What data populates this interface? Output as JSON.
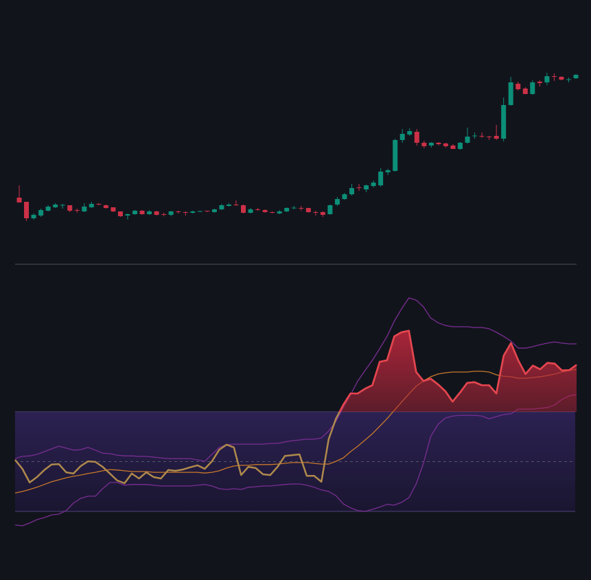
{
  "chart_data": [
    {
      "type": "candlestick",
      "up_color": "#0c8f78",
      "down_color": "#cc3147",
      "ylim": [
        20,
        345
      ],
      "open": [
        112,
        106,
        82,
        86,
        93,
        98,
        101,
        101,
        94,
        92,
        98,
        103,
        101,
        98,
        92,
        86,
        88,
        93,
        88,
        92,
        88,
        87,
        92,
        91,
        90,
        92,
        93,
        91,
        95,
        100,
        102,
        101,
        90,
        95,
        94,
        91,
        89,
        92,
        97,
        97,
        97,
        91,
        91,
        88,
        102,
        110,
        117,
        127,
        124,
        129,
        130,
        149,
        151,
        196,
        204,
        208,
        192,
        188,
        192,
        191,
        188,
        183,
        192,
        202,
        202,
        201,
        202,
        198,
        247,
        278,
        271,
        263,
        281,
        280,
        289,
        288,
        284,
        286
      ],
      "close": [
        105,
        82,
        87,
        94,
        99,
        102,
        101.5,
        93,
        93,
        99,
        103,
        102.5,
        97,
        92,
        85,
        88,
        93,
        88,
        92,
        87,
        87,
        92,
        91,
        90,
        92,
        92.5,
        92,
        95,
        101,
        102,
        101,
        90,
        95,
        94.5,
        91,
        90.5,
        92,
        97,
        97.5,
        96.5,
        91,
        90,
        87,
        101,
        110,
        117,
        126,
        126,
        130,
        134,
        150,
        152,
        196,
        205,
        209,
        192,
        187,
        192,
        190,
        187,
        183,
        192,
        201,
        202.5,
        201.5,
        200,
        198,
        247,
        280,
        270,
        263,
        280,
        279,
        289,
        288,
        284,
        284.5,
        291
      ],
      "high": [
        130,
        106,
        89,
        96,
        101,
        104,
        103,
        101,
        96,
        104,
        106,
        104,
        102,
        98,
        92,
        89,
        94,
        94,
        94,
        93,
        90,
        93,
        93,
        92,
        93,
        93,
        93,
        96,
        103,
        104,
        108,
        102,
        97,
        97,
        95,
        92,
        94,
        98,
        100,
        100,
        97,
        93,
        92,
        102,
        113,
        119,
        132,
        132,
        131,
        137,
        155,
        154,
        198,
        212,
        213,
        212,
        195,
        193,
        193,
        192,
        190,
        193,
        214,
        207,
        207,
        202,
        218,
        258,
        288,
        281,
        273,
        283,
        283,
        294,
        293,
        289,
        287,
        292
      ],
      "low": [
        105,
        78,
        80,
        84,
        92,
        97,
        96,
        91,
        90,
        91,
        97,
        101,
        96,
        91,
        84,
        80,
        87,
        87,
        87,
        86,
        85,
        85,
        89,
        86,
        89,
        91,
        91,
        90,
        94,
        99,
        100,
        89,
        89,
        93,
        90,
        89,
        88,
        91,
        95,
        93,
        90,
        86,
        84,
        87,
        100,
        109,
        115,
        122,
        120,
        127,
        128,
        145,
        150,
        192,
        202,
        188,
        184,
        185,
        188,
        185,
        183,
        182,
        191,
        198,
        199,
        196,
        196,
        194,
        246,
        268,
        263,
        262,
        274,
        276,
        282,
        283,
        280,
        285
      ]
    },
    {
      "type": "indicator",
      "ylim": [
        10,
        125
      ],
      "zone": [
        30,
        70
      ],
      "midline": 50,
      "zone_color": "#2c2152",
      "overbought_color": "#e8434f",
      "series": [
        {
          "color": "#7a2e93",
          "values": [
            51.2,
            52.1,
            52.3,
            52.9,
            54.0,
            55.1,
            56.2,
            55.4,
            54.6,
            54.8,
            55.7,
            54.6,
            53.4,
            53.2,
            52.6,
            52.3,
            52.3,
            52.1,
            52.1,
            51.8,
            51.5,
            51.2,
            51.2,
            51.2,
            51.2,
            50.7,
            50.1,
            52.9,
            55.7,
            56.8,
            57.0,
            57.0,
            57.0,
            57.0,
            57.0,
            57.3,
            57.3,
            57.9,
            58.4,
            58.7,
            59.0,
            59.0,
            59.5,
            62.3,
            66.1,
            71.7,
            76.9,
            82.4,
            86.6,
            90.7,
            95.4,
            100.3,
            106.4,
            111.4,
            115.8,
            114.9,
            112.2,
            107.7,
            105.8,
            104.7,
            104.2,
            104.2,
            104.2,
            103.9,
            103.9,
            103.4,
            102.0,
            100.3,
            98.4,
            95.6,
            95.6,
            96.2,
            97.0,
            97.6,
            98.1,
            97.6,
            97.3,
            97.3
          ]
        },
        {
          "color": "#7a2e93",
          "values": [
            24.5,
            24.2,
            25.3,
            26.7,
            27.5,
            28.6,
            28.9,
            30.3,
            33.3,
            35.2,
            36.1,
            36.1,
            39.1,
            41.6,
            41.6,
            40.5,
            40.8,
            40.8,
            40.8,
            40.5,
            40.2,
            40.2,
            40.2,
            40.2,
            40.2,
            40.5,
            40.8,
            40.2,
            39.1,
            38.8,
            39.1,
            38.8,
            39.7,
            39.9,
            40.2,
            40.2,
            40.5,
            40.8,
            41.0,
            41.0,
            40.5,
            39.7,
            38.6,
            38.0,
            36.3,
            33.0,
            31.4,
            30.3,
            30.0,
            30.8,
            31.7,
            32.8,
            32.5,
            33.6,
            35.5,
            41.0,
            49.3,
            60.1,
            65.0,
            67.5,
            68.3,
            68.6,
            68.6,
            68.6,
            68.3,
            67.2,
            68.1,
            68.9,
            69.2,
            71.1,
            71.1,
            71.1,
            71.4,
            71.7,
            72.8,
            75.0,
            76.4,
            76.9
          ]
        },
        {
          "color": "#c97a2a",
          "values": [
            37.4,
            38.0,
            38.8,
            39.7,
            40.8,
            41.9,
            42.7,
            43.5,
            44.1,
            44.6,
            45.2,
            45.7,
            46.3,
            46.8,
            46.6,
            46.3,
            46.0,
            46.0,
            46.0,
            45.7,
            45.7,
            45.7,
            45.7,
            45.7,
            45.7,
            45.7,
            45.4,
            45.7,
            46.3,
            47.4,
            48.2,
            48.5,
            48.5,
            48.8,
            48.8,
            48.8,
            49.0,
            49.3,
            49.6,
            49.6,
            49.6,
            49.3,
            49.0,
            49.0,
            50.1,
            51.5,
            54.0,
            56.2,
            58.7,
            61.2,
            64.2,
            67.2,
            70.6,
            73.9,
            77.2,
            80.3,
            82.4,
            84.1,
            85.2,
            85.7,
            86.0,
            86.0,
            86.0,
            86.3,
            86.3,
            86.0,
            84.9,
            84.3,
            84.1,
            83.5,
            83.5,
            83.8,
            84.1,
            84.6,
            85.2,
            86.0,
            86.6,
            87.1
          ]
        },
        {
          "color": "#b08a4c",
          "values": [
            50.7,
            47.1,
            41.6,
            43.8,
            46.6,
            48.8,
            49.0,
            45.7,
            45.2,
            48.2,
            50.1,
            49.9,
            47.9,
            45.2,
            42.4,
            41.3,
            45.2,
            43.2,
            45.7,
            43.8,
            43.2,
            46.6,
            46.3,
            46.8,
            47.7,
            48.5,
            47.1,
            50.1,
            54.8,
            56.8,
            55.7,
            44.6,
            47.9,
            47.4,
            44.9,
            44.6,
            47.9,
            52.3,
            52.6,
            52.9,
            44.3,
            44.3,
            41.9,
            59.0,
            67.2,
            72.8,
            77.4,
            77.4,
            79.3,
            80.7,
            90.1,
            90.7,
            100.3,
            102.0,
            102.6,
            86.0,
            82.4,
            83.3,
            81.0,
            78.3,
            74.1,
            77.7,
            81.6,
            81.9,
            80.7,
            80.7,
            77.4,
            92.6,
            97.6,
            90.7,
            85.2,
            88.6,
            87.1,
            89.7,
            89.4,
            86.6,
            86.8,
            88.9
          ]
        }
      ]
    }
  ]
}
